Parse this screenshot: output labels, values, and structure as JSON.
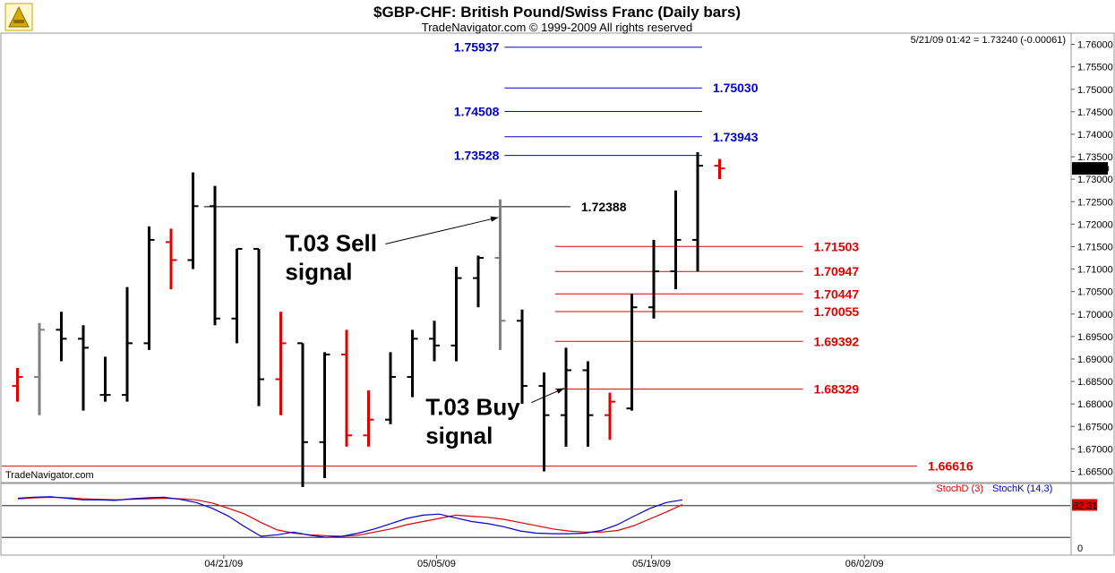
{
  "header": {
    "title": "$GBP-CHF:  British Pound/Swiss Franc  (Daily bars)",
    "copyright": "TradeNavigator.com © 1999-2009 All rights reserved",
    "quote": "5/21/09 01:42 = 1.73240 (-0.00061)",
    "watermark": "TradeNavigator.com"
  },
  "chart_data": [
    {
      "type": "ohlc",
      "ylim": [
        1.6625,
        1.7625
      ],
      "y_ticks": [
        "1.76000",
        "1.75500",
        "1.75000",
        "1.74500",
        "1.74000",
        "1.73500",
        "1.73000",
        "1.72500",
        "1.72000",
        "1.71500",
        "1.71000",
        "1.70500",
        "1.70000",
        "1.69500",
        "1.69000",
        "1.68500",
        "1.68000",
        "1.67500",
        "1.67000",
        "1.66500"
      ],
      "x_ticks": [
        "04/21/09",
        "05/05/09",
        "05/19/09",
        "06/02/09"
      ],
      "last_price": "1.73240",
      "colors": {
        "normal": "#000000",
        "signal_red": "#e00000",
        "signal_gray": "#808080",
        "blue_level": "#0000cc",
        "red_level": "#e00000"
      },
      "bars": [
        {
          "o": 1.684,
          "h": 1.688,
          "l": 1.6805,
          "c": 1.686,
          "color": "red"
        },
        {
          "o": 1.686,
          "h": 1.698,
          "l": 1.6775,
          "c": 1.6965,
          "color": "gray"
        },
        {
          "o": 1.6965,
          "h": 1.7005,
          "l": 1.6895,
          "c": 1.6945,
          "color": "black"
        },
        {
          "o": 1.6945,
          "h": 1.6975,
          "l": 1.6785,
          "c": 1.6925,
          "color": "black"
        },
        {
          "o": 1.682,
          "h": 1.6905,
          "l": 1.6805,
          "c": 1.682,
          "color": "black"
        },
        {
          "o": 1.682,
          "h": 1.706,
          "l": 1.6805,
          "c": 1.6935,
          "color": "black"
        },
        {
          "o": 1.6935,
          "h": 1.7195,
          "l": 1.692,
          "c": 1.7165,
          "color": "black"
        },
        {
          "o": 1.716,
          "h": 1.719,
          "l": 1.7055,
          "c": 1.712,
          "color": "red"
        },
        {
          "o": 1.712,
          "h": 1.7315,
          "l": 1.71,
          "c": 1.724,
          "color": "black"
        },
        {
          "o": 1.724,
          "h": 1.7285,
          "l": 1.6975,
          "c": 1.699,
          "color": "black"
        },
        {
          "o": 1.699,
          "h": 1.7145,
          "l": 1.6935,
          "c": 1.7145,
          "color": "black"
        },
        {
          "o": 1.7145,
          "h": 1.7145,
          "l": 1.6795,
          "c": 1.6855,
          "color": "black"
        },
        {
          "o": 1.6855,
          "h": 1.7005,
          "l": 1.6775,
          "c": 1.6935,
          "color": "red"
        },
        {
          "o": 1.6935,
          "h": 1.6935,
          "l": 1.6615,
          "c": 1.6715,
          "color": "black"
        },
        {
          "o": 1.6715,
          "h": 1.6915,
          "l": 1.6635,
          "c": 1.691,
          "color": "black"
        },
        {
          "o": 1.691,
          "h": 1.6965,
          "l": 1.6705,
          "c": 1.673,
          "color": "red"
        },
        {
          "o": 1.673,
          "h": 1.683,
          "l": 1.6705,
          "c": 1.6765,
          "color": "red"
        },
        {
          "o": 1.6765,
          "h": 1.6915,
          "l": 1.6755,
          "c": 1.686,
          "color": "black"
        },
        {
          "o": 1.686,
          "h": 1.6965,
          "l": 1.6815,
          "c": 1.6945,
          "color": "black"
        },
        {
          "o": 1.6945,
          "h": 1.6985,
          "l": 1.6895,
          "c": 1.693,
          "color": "black"
        },
        {
          "o": 1.693,
          "h": 1.7105,
          "l": 1.6895,
          "c": 1.708,
          "color": "black"
        },
        {
          "o": 1.708,
          "h": 1.713,
          "l": 1.7015,
          "c": 1.7125,
          "color": "black"
        },
        {
          "o": 1.7125,
          "h": 1.7255,
          "l": 1.692,
          "c": 1.6985,
          "color": "gray"
        },
        {
          "o": 1.6985,
          "h": 1.701,
          "l": 1.68,
          "c": 1.684,
          "color": "black"
        },
        {
          "o": 1.684,
          "h": 1.687,
          "l": 1.665,
          "c": 1.6775,
          "color": "black"
        },
        {
          "o": 1.6775,
          "h": 1.6925,
          "l": 1.6705,
          "c": 1.6875,
          "color": "black"
        },
        {
          "o": 1.6875,
          "h": 1.6895,
          "l": 1.6705,
          "c": 1.6775,
          "color": "black"
        },
        {
          "o": 1.6775,
          "h": 1.6825,
          "l": 1.672,
          "c": 1.6805,
          "color": "red"
        },
        {
          "o": 1.679,
          "h": 1.7045,
          "l": 1.6785,
          "c": 1.7015,
          "color": "black"
        },
        {
          "o": 1.7015,
          "h": 1.7165,
          "l": 1.699,
          "c": 1.7095,
          "color": "black"
        },
        {
          "o": 1.7095,
          "h": 1.7275,
          "l": 1.7055,
          "c": 1.7165,
          "color": "black"
        },
        {
          "o": 1.7165,
          "h": 1.736,
          "l": 1.7095,
          "c": 1.733,
          "color": "black"
        },
        {
          "o": 1.733,
          "h": 1.7345,
          "l": 1.73,
          "c": 1.7324,
          "color": "red"
        }
      ],
      "levels": [
        {
          "label": "1.75937",
          "value": 1.75937,
          "color": "blue",
          "side": "left",
          "from": 22.2,
          "to": 31.2
        },
        {
          "label": "1.75030",
          "value": 1.7503,
          "color": "blue",
          "side": "right",
          "from": 22.2,
          "to": 31.2
        },
        {
          "label": "1.74508",
          "value": 1.74508,
          "color": "blue",
          "side": "left",
          "from": 22.2,
          "to": 31.2
        },
        {
          "label": "1.73943",
          "value": 1.73943,
          "color": "blue",
          "side": "right",
          "from": 22.2,
          "to": 31.2
        },
        {
          "label": "1.73528",
          "value": 1.73528,
          "color": "blue",
          "side": "left",
          "from": 22.2,
          "to": 31.2
        },
        {
          "label": "1.72388",
          "value": 1.72388,
          "color": "black",
          "side": "right",
          "from": 8.5,
          "to": 25.2
        },
        {
          "label": "1.71503",
          "value": 1.71503,
          "color": "red",
          "side": "right",
          "from": 24.5,
          "to": 35.8
        },
        {
          "label": "1.70947",
          "value": 1.70947,
          "color": "red",
          "side": "right",
          "from": 24.5,
          "to": 35.8
        },
        {
          "label": "1.70447",
          "value": 1.70447,
          "color": "red",
          "side": "right",
          "from": 24.5,
          "to": 35.8
        },
        {
          "label": "1.70055",
          "value": 1.70055,
          "color": "red",
          "side": "right",
          "from": 24.5,
          "to": 35.8
        },
        {
          "label": "1.69392",
          "value": 1.69392,
          "color": "red",
          "side": "right",
          "from": 24.5,
          "to": 35.8
        },
        {
          "label": "1.68329",
          "value": 1.68329,
          "color": "red",
          "side": "right",
          "from": 24.5,
          "to": 35.8
        },
        {
          "label": "1.66616",
          "value": 1.66616,
          "color": "red",
          "side": "right",
          "from": -1,
          "to": 41
        }
      ],
      "annotations": [
        {
          "lines": [
            "T.03 Sell",
            "signal"
          ],
          "x": 12.2,
          "y": 1.714,
          "target_bar": 22,
          "target_price": 1.7215
        },
        {
          "lines": [
            "T.03 Buy",
            "signal"
          ],
          "x": 18.6,
          "y": 1.6775,
          "target_bar": 25,
          "target_price": 1.6835
        }
      ]
    },
    {
      "type": "line",
      "ylim": [
        0,
        100
      ],
      "y_ticks": [
        "0"
      ],
      "reference_lines": [
        80,
        20
      ],
      "last_value_label": "82.31",
      "series": [
        {
          "name": "StochD (3)",
          "color": "#e00000",
          "values": [
            93,
            95,
            96,
            95,
            93,
            92,
            91,
            92,
            93,
            94,
            93,
            91,
            85,
            75,
            64,
            48,
            34,
            28,
            25,
            23,
            22,
            24,
            30,
            36,
            44,
            50,
            56,
            62,
            60,
            58,
            54,
            48,
            42,
            36,
            32,
            30,
            30,
            33,
            42,
            55,
            68,
            82
          ]
        },
        {
          "name": "StochK (14,3)",
          "color": "#0000cc",
          "values": [
            94,
            96,
            97,
            94,
            91,
            91,
            90,
            93,
            95,
            96,
            92,
            86,
            75,
            60,
            40,
            22,
            25,
            30,
            24,
            20,
            22,
            28,
            36,
            46,
            56,
            62,
            64,
            57,
            50,
            46,
            40,
            32,
            28,
            27,
            27,
            28,
            33,
            44,
            60,
            75,
            86,
            91
          ]
        }
      ]
    }
  ]
}
